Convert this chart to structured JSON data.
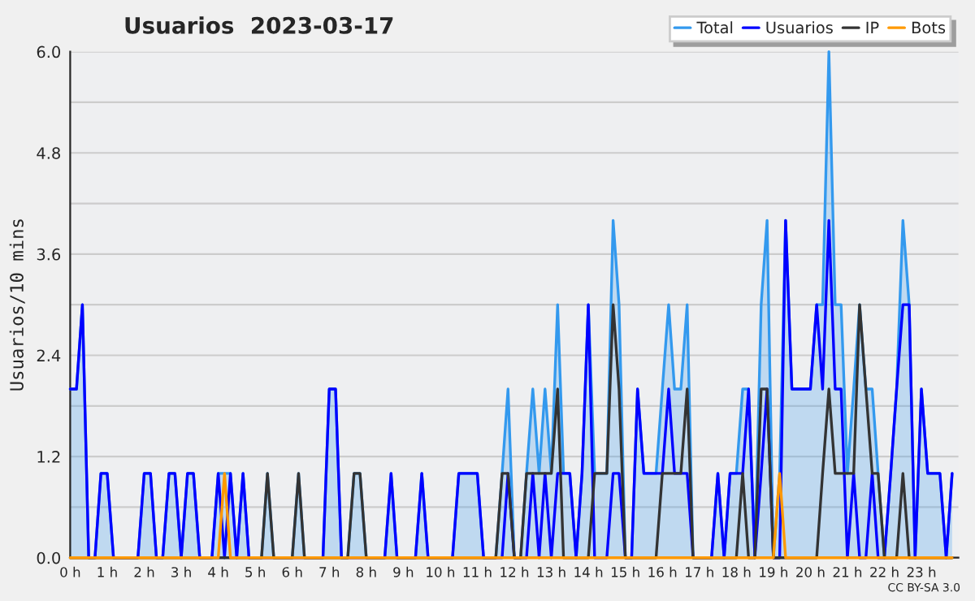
{
  "chart_data": {
    "type": "line",
    "title": "Usuarios  2023-03-17",
    "ylabel": "Usuarios/10 mins",
    "x": [
      0,
      0.17,
      0.33,
      0.5,
      0.67,
      0.83,
      1,
      1.17,
      1.33,
      1.5,
      1.67,
      1.83,
      2,
      2.17,
      2.33,
      2.5,
      2.67,
      2.83,
      3,
      3.17,
      3.33,
      3.5,
      3.67,
      3.83,
      4,
      4.17,
      4.33,
      4.5,
      4.67,
      4.83,
      5,
      5.17,
      5.33,
      5.5,
      5.67,
      5.83,
      6,
      6.17,
      6.33,
      6.5,
      6.67,
      6.83,
      7,
      7.17,
      7.33,
      7.5,
      7.67,
      7.83,
      8,
      8.17,
      8.33,
      8.5,
      8.67,
      8.83,
      9,
      9.17,
      9.33,
      9.5,
      9.67,
      9.83,
      10,
      10.17,
      10.33,
      10.5,
      10.67,
      10.83,
      11,
      11.17,
      11.33,
      11.5,
      11.67,
      11.83,
      12,
      12.17,
      12.33,
      12.5,
      12.67,
      12.83,
      13,
      13.17,
      13.33,
      13.5,
      13.67,
      13.83,
      14,
      14.17,
      14.33,
      14.5,
      14.67,
      14.83,
      15,
      15.17,
      15.33,
      15.5,
      15.67,
      15.83,
      16,
      16.17,
      16.33,
      16.5,
      16.67,
      16.83,
      17,
      17.17,
      17.33,
      17.5,
      17.67,
      17.83,
      18,
      18.17,
      18.33,
      18.5,
      18.67,
      18.83,
      19,
      19.17,
      19.33,
      19.5,
      19.67,
      19.83,
      20,
      20.17,
      20.33,
      20.5,
      20.67,
      20.83,
      21,
      21.17,
      21.33,
      21.5,
      21.67,
      21.83,
      22,
      22.17,
      22.33,
      22.5,
      22.67,
      22.83,
      23,
      23.17,
      23.33,
      23.5,
      23.67,
      23.83
    ],
    "series": [
      {
        "name": "Total",
        "type": "area",
        "color": "#3399ee",
        "values": [
          2,
          2,
          3,
          0,
          0,
          1,
          1,
          0,
          0,
          0,
          0,
          0,
          1,
          1,
          0,
          0,
          1,
          1,
          0,
          1,
          1,
          0,
          0,
          0,
          1,
          1,
          1,
          0,
          1,
          0,
          0,
          0,
          1,
          0,
          0,
          0,
          0,
          1,
          0,
          0,
          0,
          0,
          2,
          2,
          0,
          0,
          1,
          1,
          0,
          0,
          0,
          0,
          1,
          0,
          0,
          0,
          0,
          1,
          0,
          0,
          0,
          0,
          0,
          1,
          1,
          1,
          1,
          0,
          0,
          0,
          1,
          2,
          0,
          0,
          1,
          2,
          1,
          2,
          1,
          3,
          1,
          1,
          0,
          1,
          3,
          1,
          1,
          1,
          4,
          3,
          0,
          0,
          2,
          1,
          1,
          1,
          2,
          3,
          2,
          2,
          3,
          0,
          0,
          0,
          0,
          1,
          0,
          1,
          1,
          2,
          2,
          0,
          3,
          4,
          0,
          1,
          4,
          2,
          2,
          2,
          2,
          3,
          3,
          6,
          3,
          3,
          1,
          2,
          3,
          2,
          2,
          1,
          0,
          1,
          2,
          4,
          3,
          0,
          2,
          1,
          1,
          1,
          0,
          1
        ]
      },
      {
        "name": "Usuarios",
        "color": "#0000ff",
        "values": [
          2,
          2,
          3,
          0,
          0,
          1,
          1,
          0,
          0,
          0,
          0,
          0,
          1,
          1,
          0,
          0,
          1,
          1,
          0,
          1,
          1,
          0,
          0,
          0,
          1,
          0,
          1,
          0,
          1,
          0,
          0,
          0,
          0,
          0,
          0,
          0,
          0,
          0,
          0,
          0,
          0,
          0,
          2,
          2,
          0,
          0,
          0,
          0,
          0,
          0,
          0,
          0,
          1,
          0,
          0,
          0,
          0,
          1,
          0,
          0,
          0,
          0,
          0,
          1,
          1,
          1,
          1,
          0,
          0,
          0,
          0,
          1,
          0,
          0,
          0,
          1,
          0,
          1,
          0,
          1,
          1,
          1,
          0,
          1,
          3,
          0,
          0,
          0,
          1,
          1,
          0,
          0,
          2,
          1,
          1,
          1,
          1,
          2,
          1,
          1,
          1,
          0,
          0,
          0,
          0,
          1,
          0,
          1,
          1,
          1,
          2,
          0,
          1,
          2,
          0,
          0,
          4,
          2,
          2,
          2,
          2,
          3,
          2,
          4,
          2,
          2,
          0,
          1,
          0,
          0,
          1,
          0,
          0,
          1,
          2,
          3,
          3,
          0,
          2,
          1,
          1,
          1,
          0,
          1
        ]
      },
      {
        "name": "IP",
        "color": "#333333",
        "values": [
          0,
          0,
          0,
          0,
          0,
          0,
          0,
          0,
          0,
          0,
          0,
          0,
          0,
          0,
          0,
          0,
          0,
          0,
          0,
          0,
          0,
          0,
          0,
          0,
          0,
          0,
          0,
          0,
          0,
          0,
          0,
          0,
          1,
          0,
          0,
          0,
          0,
          1,
          0,
          0,
          0,
          0,
          0,
          0,
          0,
          0,
          1,
          1,
          0,
          0,
          0,
          0,
          0,
          0,
          0,
          0,
          0,
          0,
          0,
          0,
          0,
          0,
          0,
          0,
          0,
          0,
          0,
          0,
          0,
          0,
          1,
          1,
          0,
          0,
          1,
          1,
          1,
          1,
          1,
          2,
          0,
          0,
          0,
          0,
          0,
          1,
          1,
          1,
          3,
          2,
          0,
          0,
          0,
          0,
          0,
          0,
          1,
          1,
          1,
          1,
          2,
          0,
          0,
          0,
          0,
          0,
          0,
          0,
          0,
          1,
          0,
          0,
          2,
          2,
          0,
          0,
          0,
          0,
          0,
          0,
          0,
          0,
          1,
          2,
          1,
          1,
          1,
          1,
          3,
          2,
          1,
          1,
          0,
          0,
          0,
          1,
          0,
          0,
          0,
          0,
          0,
          0,
          0,
          0
        ]
      },
      {
        "name": "Bots",
        "type": "line",
        "color": "#ff9900",
        "values": [
          0,
          0,
          0,
          0,
          0,
          0,
          0,
          0,
          0,
          0,
          0,
          0,
          0,
          0,
          0,
          0,
          0,
          0,
          0,
          0,
          0,
          0,
          0,
          0,
          0,
          1,
          0,
          0,
          0,
          0,
          0,
          0,
          0,
          0,
          0,
          0,
          0,
          0,
          0,
          0,
          0,
          0,
          0,
          0,
          0,
          0,
          0,
          0,
          0,
          0,
          0,
          0,
          0,
          0,
          0,
          0,
          0,
          0,
          0,
          0,
          0,
          0,
          0,
          0,
          0,
          0,
          0,
          0,
          0,
          0,
          0,
          0,
          0,
          0,
          0,
          0,
          0,
          0,
          0,
          0,
          0,
          0,
          0,
          0,
          0,
          0,
          0,
          0,
          0,
          0,
          0,
          0,
          0,
          0,
          0,
          0,
          0,
          0,
          0,
          0,
          0,
          0,
          0,
          0,
          0,
          0,
          0,
          0,
          0,
          0,
          0,
          0,
          0,
          0,
          0,
          1,
          0,
          0,
          0,
          0,
          0,
          0,
          0,
          0,
          0,
          0,
          0,
          0,
          0,
          0,
          0,
          0,
          0,
          0,
          0,
          0,
          0,
          0,
          0,
          0,
          0,
          0,
          0,
          0
        ]
      }
    ],
    "xlim": [
      0,
      24
    ],
    "xticks": [
      {
        "value": 0,
        "label": "0 h"
      },
      {
        "value": 1,
        "label": "1 h"
      },
      {
        "value": 2,
        "label": "2 h"
      },
      {
        "value": 3,
        "label": "3 h"
      },
      {
        "value": 4,
        "label": "4 h"
      },
      {
        "value": 5,
        "label": "5 h"
      },
      {
        "value": 6,
        "label": "6 h"
      },
      {
        "value": 7,
        "label": "7 h"
      },
      {
        "value": 8,
        "label": "8 h"
      },
      {
        "value": 9,
        "label": "9 h"
      },
      {
        "value": 10,
        "label": "10 h"
      },
      {
        "value": 11,
        "label": "11 h"
      },
      {
        "value": 12,
        "label": "12 h"
      },
      {
        "value": 13,
        "label": "13 h"
      },
      {
        "value": 14,
        "label": "14 h"
      },
      {
        "value": 15,
        "label": "15 h"
      },
      {
        "value": 16,
        "label": "16 h"
      },
      {
        "value": 17,
        "label": "17 h"
      },
      {
        "value": 18,
        "label": "18 h"
      },
      {
        "value": 19,
        "label": "19 h"
      },
      {
        "value": 20,
        "label": "20 h"
      },
      {
        "value": 21,
        "label": "21 h"
      },
      {
        "value": 22,
        "label": "22 h"
      },
      {
        "value": 23,
        "label": "23 h"
      }
    ],
    "ylim": [
      0,
      6
    ],
    "yticks": [
      {
        "value": 0,
        "label": "0.0"
      },
      {
        "value": 0.6,
        "label": null
      },
      {
        "value": 1.2,
        "label": "1.2"
      },
      {
        "value": 1.8,
        "label": null
      },
      {
        "value": 2.4,
        "label": "2.4"
      },
      {
        "value": 3,
        "label": null
      },
      {
        "value": 3.6,
        "label": "3.6"
      },
      {
        "value": 4.2,
        "label": null
      },
      {
        "value": 4.8,
        "label": "4.8"
      },
      {
        "value": 5.4,
        "label": null
      },
      {
        "value": 6,
        "label": "6.0"
      }
    ],
    "grid": "y",
    "legend": "top right",
    "annotations": [
      "CC BY-SA 3.0"
    ]
  }
}
